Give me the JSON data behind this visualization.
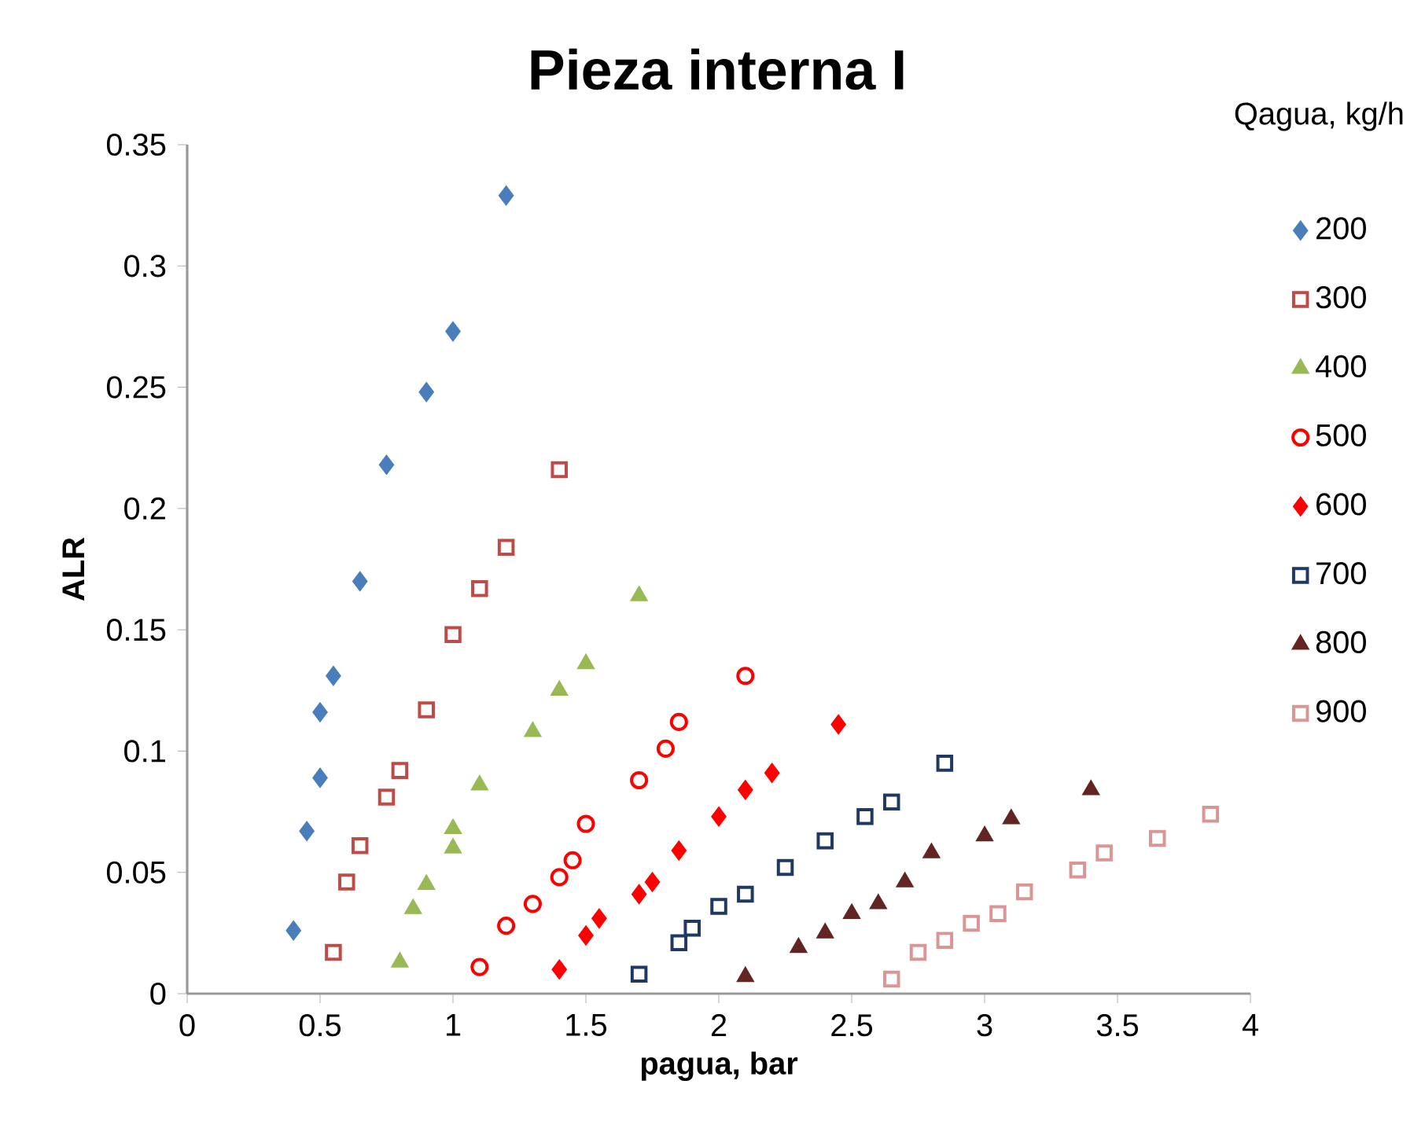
{
  "chart_data": {
    "type": "scatter",
    "title": "Pieza interna I",
    "xlabel": "pagua, bar",
    "ylabel": "ALR",
    "legend_title": "Qagua, kg/h",
    "legend": "right",
    "grid": false,
    "xlim": [
      0,
      4
    ],
    "xticks": [
      0,
      0.5,
      1,
      1.5,
      2,
      2.5,
      3,
      3.5,
      4
    ],
    "ylim": [
      0,
      0.35
    ],
    "yticks": [
      0,
      0.05,
      0.1,
      0.15,
      0.2,
      0.25,
      0.3,
      0.35
    ],
    "series": [
      {
        "name": "200",
        "color": "#4a7ebb",
        "marker": "diamond",
        "x": [
          0.4,
          0.45,
          0.5,
          0.5,
          0.55,
          0.65,
          0.75,
          0.9,
          1.0,
          1.2
        ],
        "values": [
          0.026,
          0.067,
          0.089,
          0.116,
          0.131,
          0.17,
          0.218,
          0.248,
          0.273,
          0.329
        ]
      },
      {
        "name": "300",
        "color": "#be4b48",
        "marker": "square",
        "x": [
          0.55,
          0.6,
          0.65,
          0.75,
          0.8,
          0.9,
          1.0,
          1.1,
          1.2,
          1.4
        ],
        "values": [
          0.017,
          0.046,
          0.061,
          0.081,
          0.092,
          0.117,
          0.148,
          0.167,
          0.184,
          0.216
        ]
      },
      {
        "name": "400",
        "color": "#98b954",
        "marker": "triangle",
        "x": [
          0.8,
          0.85,
          0.9,
          1.0,
          1.0,
          1.1,
          1.3,
          1.4,
          1.5,
          1.7
        ],
        "values": [
          0.013,
          0.035,
          0.045,
          0.06,
          0.068,
          0.086,
          0.108,
          0.125,
          0.136,
          0.164
        ]
      },
      {
        "name": "500",
        "color": "#ff0000",
        "marker": "circle",
        "x": [
          1.1,
          1.2,
          1.3,
          1.4,
          1.45,
          1.5,
          1.7,
          1.8,
          1.85,
          2.1
        ],
        "values": [
          0.011,
          0.028,
          0.037,
          0.048,
          0.055,
          0.07,
          0.088,
          0.101,
          0.112,
          0.131
        ]
      },
      {
        "name": "600",
        "color": "#ff0000",
        "marker": "diamond",
        "x": [
          1.4,
          1.5,
          1.55,
          1.7,
          1.75,
          1.85,
          2.0,
          2.1,
          2.2,
          2.45
        ],
        "values": [
          0.01,
          0.024,
          0.031,
          0.041,
          0.046,
          0.059,
          0.073,
          0.084,
          0.091,
          0.111
        ]
      },
      {
        "name": "700",
        "color": "#1f3864",
        "marker": "square",
        "x": [
          1.7,
          1.85,
          1.9,
          2.0,
          2.1,
          2.25,
          2.4,
          2.55,
          2.65,
          2.85
        ],
        "values": [
          0.008,
          0.021,
          0.027,
          0.036,
          0.041,
          0.052,
          0.063,
          0.073,
          0.079,
          0.095
        ]
      },
      {
        "name": "800",
        "color": "#632523",
        "marker": "triangle",
        "x": [
          2.1,
          2.3,
          2.4,
          2.5,
          2.6,
          2.7,
          2.8,
          3.0,
          3.1,
          3.4
        ],
        "values": [
          0.007,
          0.019,
          0.025,
          0.033,
          0.037,
          0.046,
          0.058,
          0.065,
          0.072,
          0.084
        ]
      },
      {
        "name": "900",
        "color": "#d99694",
        "marker": "square",
        "x": [
          2.65,
          2.75,
          2.85,
          2.95,
          3.05,
          3.15,
          3.35,
          3.45,
          3.65,
          3.85
        ],
        "values": [
          0.006,
          0.017,
          0.022,
          0.029,
          0.033,
          0.042,
          0.051,
          0.058,
          0.064,
          0.074
        ]
      }
    ]
  }
}
